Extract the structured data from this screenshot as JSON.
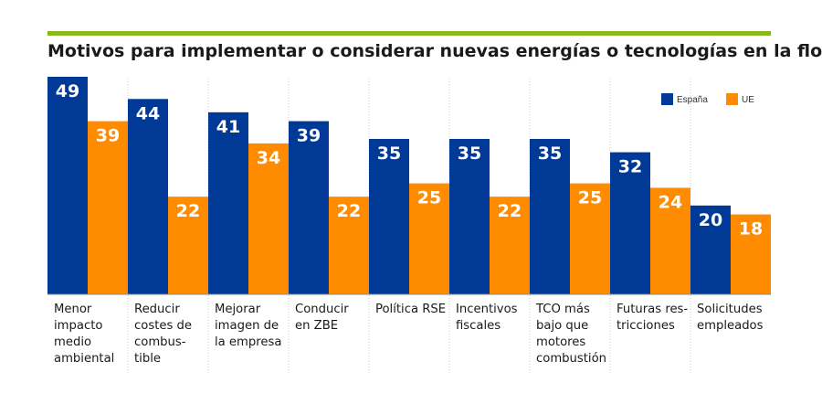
{
  "chart_data": {
    "type": "bar",
    "title": "Motivos para implementar o considerar nuevas energías o tecnologías en la flota",
    "categories": [
      "Menor\nimpacto\nmedio\nambiental",
      "Reducir\ncostes de\ncombus-\ntible",
      "Mejorar\nimagen de\nla empresa",
      "Conducir\nen ZBE",
      "Política RSE",
      "Incentivos\nfiscales",
      "TCO más\nbajo que\nmotores\ncombustión",
      "Futuras res-\ntricciones",
      "Solicitudes\nempleados"
    ],
    "series": [
      {
        "name": "España",
        "color": "#003a96",
        "values": [
          49,
          44,
          41,
          39,
          35,
          35,
          35,
          32,
          20
        ]
      },
      {
        "name": "UE",
        "color": "#ff8c00",
        "values": [
          39,
          22,
          34,
          22,
          25,
          22,
          25,
          24,
          18
        ]
      }
    ],
    "xlabel": "",
    "ylabel": "",
    "ylim": [
      0,
      49
    ],
    "legend": "top-right",
    "grid": false,
    "accent_color": "#8ab81e"
  }
}
